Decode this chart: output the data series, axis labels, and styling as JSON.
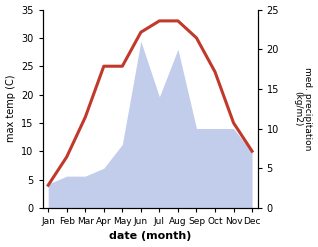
{
  "months": [
    "Jan",
    "Feb",
    "Mar",
    "Apr",
    "May",
    "Jun",
    "Jul",
    "Aug",
    "Sep",
    "Oct",
    "Nov",
    "Dec"
  ],
  "temperature": [
    4,
    9,
    16,
    25,
    25,
    31,
    33,
    33,
    30,
    24,
    15,
    10
  ],
  "precipitation_right": [
    3,
    4,
    4,
    5,
    8,
    21,
    14,
    20,
    10,
    10,
    10,
    7
  ],
  "temp_color": "#c0392b",
  "precip_fill_color": "#b8c4e8",
  "xlabel": "date (month)",
  "ylabel_left": "max temp (C)",
  "ylabel_right": "med. precipitation\n(kg/m2)",
  "ylim_left": [
    0,
    35
  ],
  "ylim_right": [
    0,
    25
  ],
  "yticks_left": [
    0,
    5,
    10,
    15,
    20,
    25,
    30,
    35
  ],
  "yticks_right": [
    0,
    5,
    10,
    15,
    20,
    25
  ],
  "background_color": "#ffffff",
  "linewidth": 2.0,
  "temp_linewidth": 2.2
}
